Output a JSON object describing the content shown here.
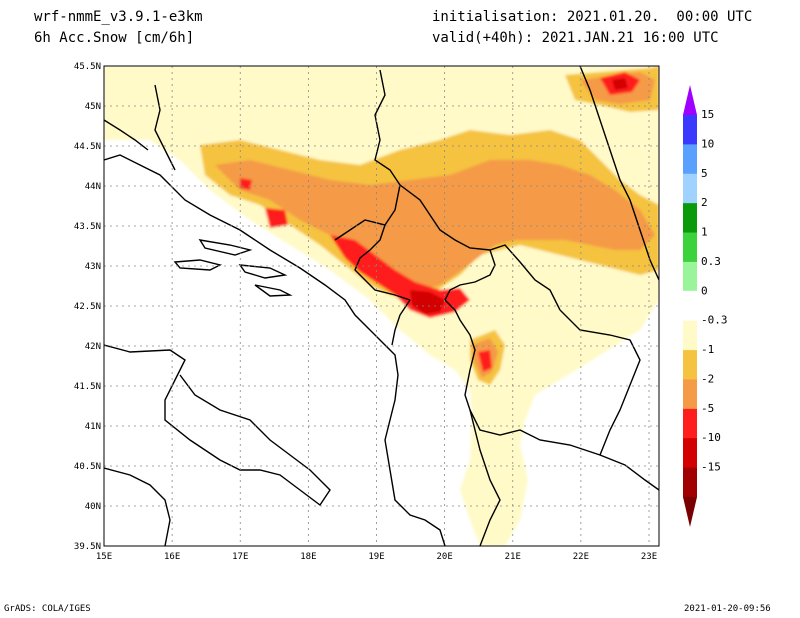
{
  "header": {
    "model": "wrf-nmmE_v3.9.1-e3km",
    "variable": "6h Acc.Snow [cm/6h]",
    "init": "initialisation: 2021.01.20.  00:00 UTC",
    "valid": "valid(+40h): 2021.JAN.21 16:00 UTC"
  },
  "footer": {
    "credit": "GrADS: COLA/IGES",
    "timestamp": "2021-01-20-09:56"
  },
  "map": {
    "lon_labels": [
      "15E",
      "16E",
      "17E",
      "18E",
      "19E",
      "20E",
      "21E",
      "22E",
      "23E"
    ],
    "lat_labels": [
      "45.5N",
      "45N",
      "44.5N",
      "44N",
      "43.5N",
      "43N",
      "42.5N",
      "42N",
      "41.5N",
      "41N",
      "40.5N",
      "40N",
      "39.5N"
    ],
    "grid": true
  },
  "legend": {
    "labels": [
      "15",
      "10",
      "5",
      "2",
      "1",
      "0.3",
      "0",
      "-0.3",
      "-1",
      "-2",
      "-5",
      "-10",
      "-15"
    ],
    "colors": [
      "#a000ff",
      "#3a3aff",
      "#5aa0ff",
      "#a0d2ff",
      "#0a9a0a",
      "#3cd23c",
      "#9af59a",
      "#ffffff",
      "#fffac8",
      "#f5c341",
      "#f59a46",
      "#ff1e1e",
      "#d20000",
      "#a00000",
      "#780000"
    ]
  }
}
